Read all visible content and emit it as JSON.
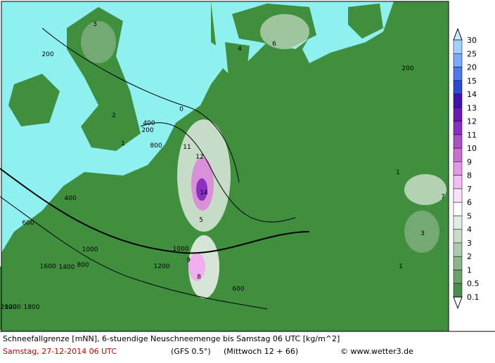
{
  "caption": {
    "line1": "Schneefallgrenze [mNN], 6-stuendige Neuschneemenge bis Samstag 06 UTC [kg/m^2]",
    "date": "Samstag, 27-12-2014  06 UTC",
    "model": "(GFS 0.5°)",
    "run": "(Mittwoch 12 + 66)",
    "site": "© www.wetter3.de"
  },
  "colorbar": {
    "labels": [
      "30",
      "25",
      "20",
      "15",
      "14",
      "13",
      "12",
      "11",
      "10",
      "9",
      "8",
      "7",
      "6",
      "5",
      "4",
      "3",
      "2",
      "1",
      "0.5",
      "0.1"
    ],
    "colors": [
      "#c8eeff",
      "#a0d0ff",
      "#7aaaff",
      "#4c78f0",
      "#2c48d8",
      "#4010b0",
      "#6a18b8",
      "#8a30c0",
      "#a850c8",
      "#c870d0",
      "#e498e8",
      "#f4bcf4",
      "#fae0fa",
      "#ffffff",
      "#e2ece2",
      "#c8dcc8",
      "#aecaae",
      "#8cb48c",
      "#6aa06a",
      "#4a8c4a",
      "#ffffff"
    ]
  },
  "map_labels": [
    "200",
    "400",
    "600",
    "800",
    "1000",
    "1200",
    "1400",
    "1600",
    "1800",
    "2000",
    "0",
    "200",
    "400",
    "800",
    "1000",
    "1200",
    "600",
    "200",
    "11",
    "12",
    "14",
    "5",
    "9",
    "8",
    "1",
    "2",
    "3",
    "4",
    "6",
    "7",
    "1",
    "3",
    "1"
  ]
}
